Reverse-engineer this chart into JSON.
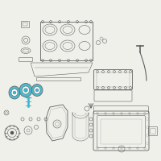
{
  "bg_color": "#f0f0eb",
  "highlight_color": "#3ab5cc",
  "line_color": "#606060",
  "light_gray": "#999999",
  "dark_gray": "#555555",
  "white": "#ffffff"
}
